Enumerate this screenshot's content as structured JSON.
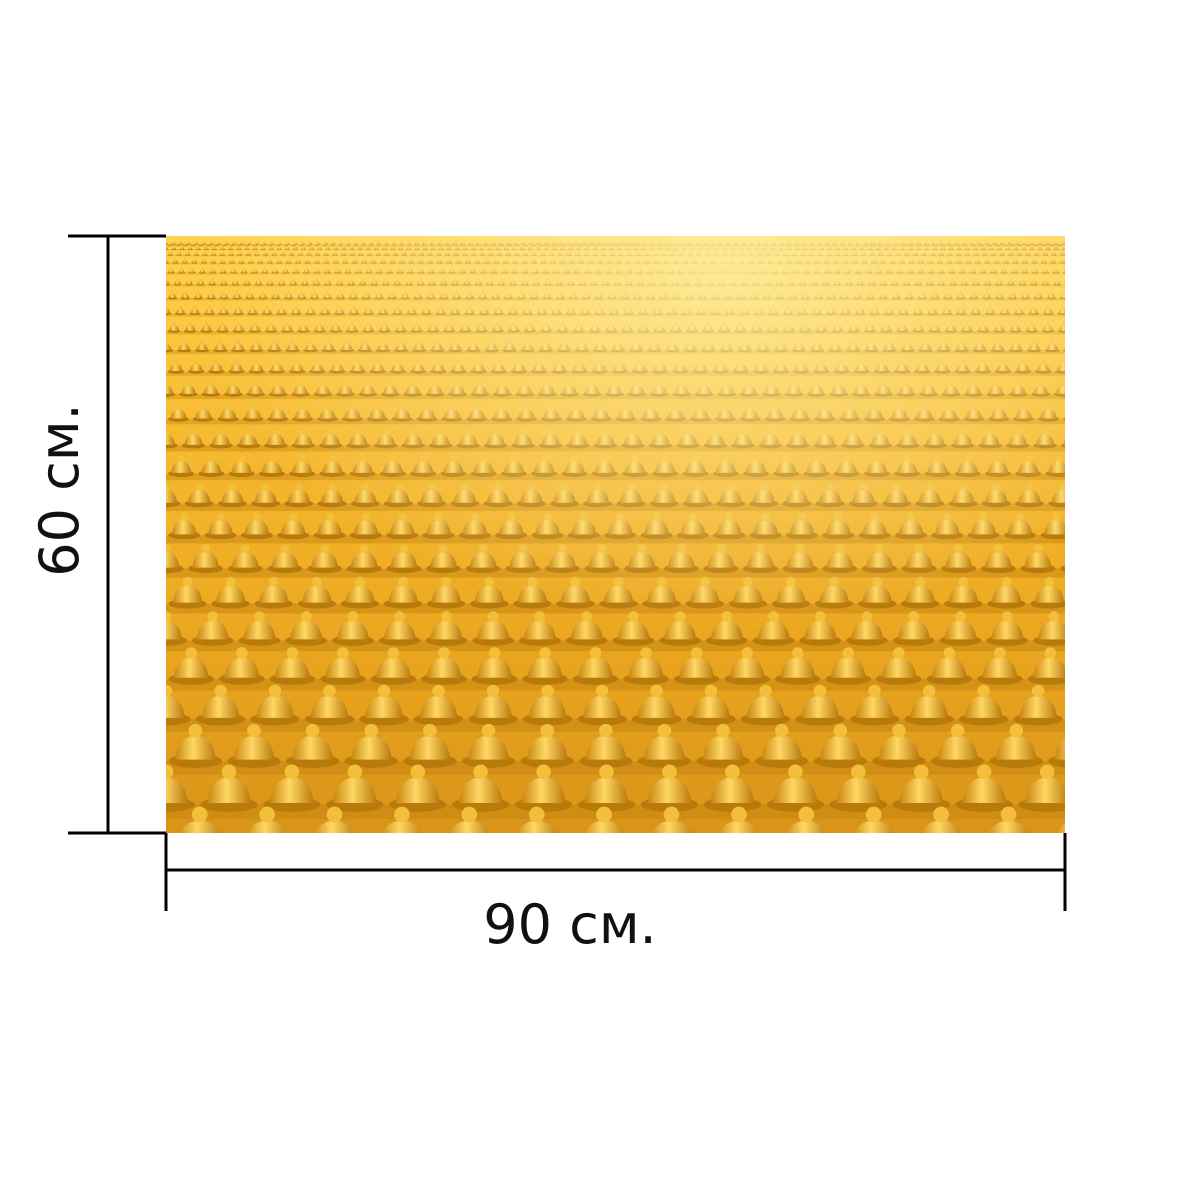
{
  "dimensions": {
    "width_label": "90 см.",
    "height_label": "60 см."
  },
  "image": {
    "subject": "golden-buddha-rows-icon",
    "colors": {
      "base": "#e9a21c",
      "highlight": "#ffd55a",
      "mid": "#f1b52d",
      "shadow": "#b97a0c",
      "line": "#000000"
    }
  }
}
